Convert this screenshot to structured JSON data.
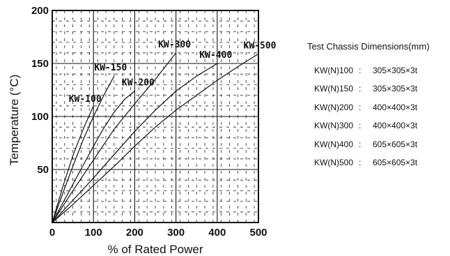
{
  "chart_data": {
    "type": "line",
    "title": "",
    "xlabel": "% of Rated Power",
    "ylabel": "Temperature  (°C)",
    "xlim": [
      0,
      500
    ],
    "ylim": [
      0,
      200
    ],
    "x_ticks": [
      "0",
      "100",
      "200",
      "300",
      "400",
      "500"
    ],
    "y_ticks": [
      "50",
      "100",
      "150",
      "200"
    ],
    "grid": true,
    "series": [
      {
        "name": "KW-100",
        "x": [
          0,
          25,
          50,
          75,
          100
        ],
        "y": [
          0,
          33,
          63,
          88,
          110
        ]
      },
      {
        "name": "KW-150",
        "x": [
          0,
          25,
          50,
          75,
          100,
          125,
          150
        ],
        "y": [
          0,
          27,
          53,
          78,
          100,
          120,
          138
        ]
      },
      {
        "name": "KW-200",
        "x": [
          0,
          25,
          50,
          75,
          100,
          125,
          150,
          175,
          200
        ],
        "y": [
          0,
          18,
          36,
          54,
          72,
          89,
          104,
          116,
          124
        ]
      },
      {
        "name": "KW-300",
        "x": [
          0,
          50,
          100,
          150,
          200,
          250,
          300
        ],
        "y": [
          0,
          30,
          59,
          88,
          112,
          135,
          160
        ]
      },
      {
        "name": "KW-400",
        "x": [
          0,
          50,
          100,
          150,
          200,
          250,
          300,
          350,
          400
        ],
        "y": [
          0,
          21,
          42,
          64,
          86,
          106,
          124,
          138,
          150
        ]
      },
      {
        "name": "KW-500",
        "x": [
          0,
          50,
          100,
          150,
          200,
          250,
          300,
          350,
          400,
          450,
          500
        ],
        "y": [
          0,
          17,
          35,
          53,
          72,
          90,
          106,
          120,
          134,
          147,
          159
        ]
      }
    ]
  },
  "side_panel": {
    "title": "Test Chassis Dimensions(mm)",
    "separator": ":",
    "rows": [
      {
        "model": "KW(N)100",
        "dims": "305×305×3t"
      },
      {
        "model": "KW(N)150",
        "dims": "305×305×3t"
      },
      {
        "model": "KW(N)200",
        "dims": "400×400×3t"
      },
      {
        "model": "KW(N)300",
        "dims": "400×400×3t"
      },
      {
        "model": "KW(N)400",
        "dims": "605×605×3t"
      },
      {
        "model": "KW(N)500",
        "dims": "605×605×3t"
      }
    ]
  }
}
